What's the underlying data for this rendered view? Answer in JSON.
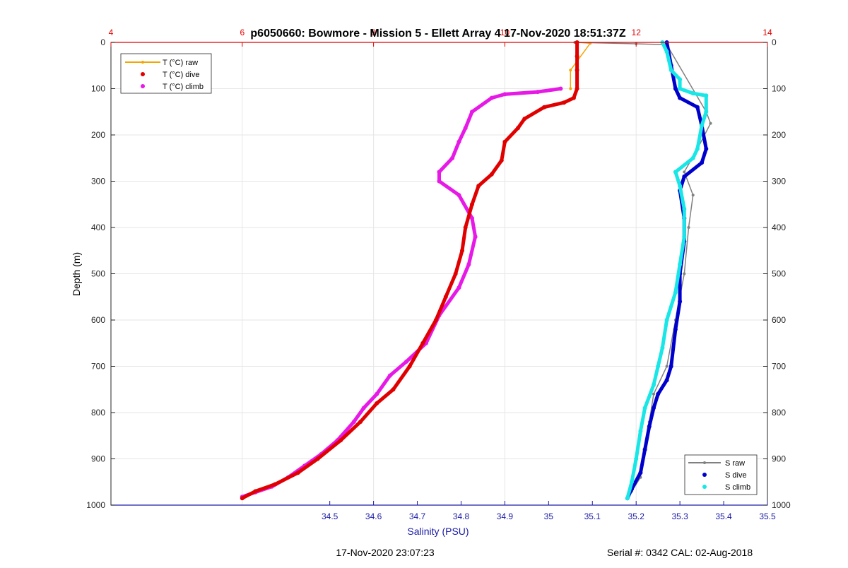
{
  "title": "p6050660: Bowmore - Mission 5 - Ellett Array 4 17-Nov-2020 18:51:37Z",
  "footer": {
    "timestamp": "17-Nov-2020 23:07:23",
    "serial": "Serial #: 0342  CAL: 02-Aug-2018"
  },
  "colors": {
    "t_raw": "#f5a500",
    "t_dive": "#e00000",
    "t_climb": "#e619e6",
    "s_raw": "#808080",
    "s_dive": "#0000cc",
    "s_climb": "#19e6e6",
    "salinity_axis": "#1a1aa6",
    "temperature_axis": "#e00000",
    "grid": "#e6e6e6"
  },
  "chart_data": {
    "type": "scatter",
    "ylabel": "Depth (m)",
    "xlabel": "Salinity (PSU)",
    "ylim": [
      0,
      1000
    ],
    "y_reversed": true,
    "grid": true,
    "y_ticks": [
      0,
      100,
      200,
      300,
      400,
      500,
      600,
      700,
      800,
      900,
      1000
    ],
    "salinity_axis": {
      "range": [
        34.0,
        35.5
      ],
      "ticks": [
        34.5,
        34.6,
        34.7,
        34.8,
        34.9,
        35,
        35.1,
        35.2,
        35.3,
        35.4,
        35.5
      ]
    },
    "temperature_axis": {
      "range": [
        4,
        14
      ],
      "ticks": [
        4,
        6,
        8,
        10,
        12,
        14
      ]
    },
    "legend_temperature": {
      "position": "top-left",
      "entries": [
        "T (°C) raw",
        "T (°C) dive",
        "T (°C) climb"
      ]
    },
    "legend_salinity": {
      "position": "bottom-right",
      "entries": [
        "S raw",
        "S dive",
        "S climb"
      ]
    },
    "series": [
      {
        "name": "T (°C) raw",
        "axis": "temperature",
        "points": [
          [
            11.1,
            0
          ],
          [
            11.3,
            2
          ],
          [
            11.0,
            60
          ],
          [
            11.0,
            100
          ]
        ]
      },
      {
        "name": "T (°C) dive",
        "axis": "temperature",
        "points": [
          [
            11.1,
            0
          ],
          [
            11.1,
            30
          ],
          [
            11.1,
            60
          ],
          [
            11.1,
            100
          ],
          [
            11.05,
            120
          ],
          [
            10.9,
            130
          ],
          [
            10.6,
            140
          ],
          [
            10.3,
            165
          ],
          [
            10.2,
            185
          ],
          [
            10.0,
            215
          ],
          [
            9.95,
            255
          ],
          [
            9.8,
            285
          ],
          [
            9.6,
            310
          ],
          [
            9.5,
            350
          ],
          [
            9.4,
            400
          ],
          [
            9.35,
            450
          ],
          [
            9.25,
            500
          ],
          [
            9.1,
            550
          ],
          [
            8.95,
            600
          ],
          [
            8.75,
            650
          ],
          [
            8.55,
            700
          ],
          [
            8.3,
            750
          ],
          [
            8.05,
            780
          ],
          [
            7.8,
            820
          ],
          [
            7.5,
            860
          ],
          [
            7.15,
            900
          ],
          [
            6.85,
            930
          ],
          [
            6.5,
            955
          ],
          [
            6.2,
            970
          ],
          [
            6.0,
            985
          ]
        ]
      },
      {
        "name": "T (°C) climb",
        "axis": "temperature",
        "points": [
          [
            10.85,
            100
          ],
          [
            10.5,
            107
          ],
          [
            10.0,
            112
          ],
          [
            9.8,
            120
          ],
          [
            9.5,
            150
          ],
          [
            9.4,
            185
          ],
          [
            9.3,
            215
          ],
          [
            9.2,
            250
          ],
          [
            9.0,
            280
          ],
          [
            9.0,
            300
          ],
          [
            9.3,
            330
          ],
          [
            9.5,
            380
          ],
          [
            9.55,
            420
          ],
          [
            9.45,
            480
          ],
          [
            9.3,
            530
          ],
          [
            9.0,
            590
          ],
          [
            8.8,
            650
          ],
          [
            8.5,
            690
          ],
          [
            8.25,
            720
          ],
          [
            8.05,
            760
          ],
          [
            7.85,
            790
          ],
          [
            7.7,
            820
          ],
          [
            7.45,
            860
          ],
          [
            7.2,
            890
          ],
          [
            6.95,
            915
          ],
          [
            6.7,
            940
          ],
          [
            6.45,
            960
          ],
          [
            6.2,
            972
          ],
          [
            6.0,
            982
          ]
        ]
      },
      {
        "name": "S raw",
        "axis": "salinity",
        "points": [
          [
            35.06,
            0
          ],
          [
            35.2,
            3
          ],
          [
            35.27,
            5
          ],
          [
            35.36,
            150
          ],
          [
            35.37,
            175
          ],
          [
            35.34,
            230
          ],
          [
            35.31,
            280
          ],
          [
            35.33,
            330
          ],
          [
            35.32,
            400
          ],
          [
            35.31,
            500
          ],
          [
            35.29,
            600
          ],
          [
            35.27,
            700
          ],
          [
            35.24,
            760
          ],
          [
            35.23,
            820
          ],
          [
            35.22,
            880
          ],
          [
            35.21,
            940
          ],
          [
            35.19,
            970
          ],
          [
            35.18,
            985
          ]
        ]
      },
      {
        "name": "S dive",
        "axis": "salinity",
        "points": [
          [
            35.27,
            0
          ],
          [
            35.28,
            50
          ],
          [
            35.29,
            100
          ],
          [
            35.3,
            120
          ],
          [
            35.34,
            140
          ],
          [
            35.35,
            180
          ],
          [
            35.36,
            230
          ],
          [
            35.35,
            260
          ],
          [
            35.31,
            290
          ],
          [
            35.3,
            320
          ],
          [
            35.31,
            380
          ],
          [
            35.31,
            430
          ],
          [
            35.3,
            500
          ],
          [
            35.3,
            560
          ],
          [
            35.29,
            620
          ],
          [
            35.28,
            700
          ],
          [
            35.27,
            730
          ],
          [
            35.25,
            760
          ],
          [
            35.24,
            790
          ],
          [
            35.23,
            830
          ],
          [
            35.22,
            880
          ],
          [
            35.21,
            930
          ],
          [
            35.19,
            965
          ],
          [
            35.18,
            985
          ]
        ]
      },
      {
        "name": "S climb",
        "axis": "salinity",
        "points": [
          [
            35.26,
            0
          ],
          [
            35.27,
            20
          ],
          [
            35.28,
            60
          ],
          [
            35.3,
            80
          ],
          [
            35.3,
            100
          ],
          [
            35.33,
            110
          ],
          [
            35.36,
            115
          ],
          [
            35.36,
            150
          ],
          [
            35.35,
            180
          ],
          [
            35.34,
            230
          ],
          [
            35.33,
            250
          ],
          [
            35.29,
            280
          ],
          [
            35.3,
            310
          ],
          [
            35.31,
            360
          ],
          [
            35.31,
            420
          ],
          [
            35.3,
            480
          ],
          [
            35.29,
            540
          ],
          [
            35.27,
            600
          ],
          [
            35.26,
            660
          ],
          [
            35.25,
            700
          ],
          [
            35.24,
            740
          ],
          [
            35.22,
            790
          ],
          [
            35.21,
            840
          ],
          [
            35.2,
            900
          ],
          [
            35.19,
            950
          ],
          [
            35.18,
            985
          ]
        ]
      }
    ]
  }
}
